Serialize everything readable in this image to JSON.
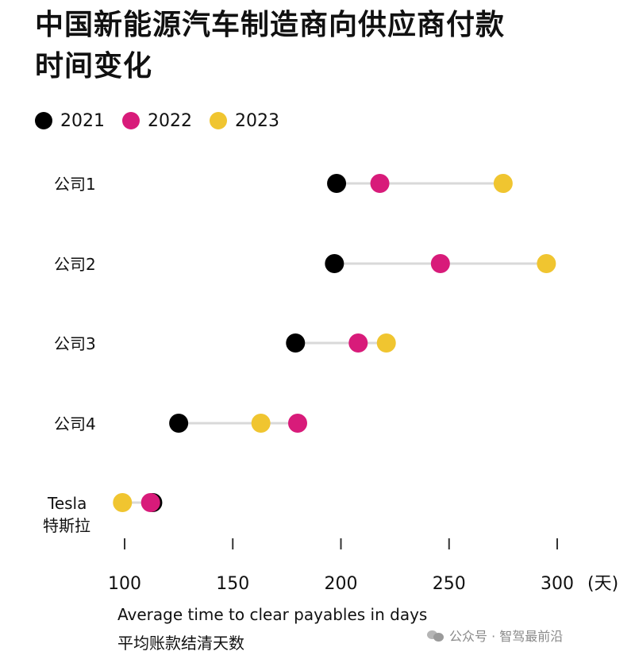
{
  "title_line1": "中国新能源汽车制造商向供应商付款",
  "title_line2": "时间变化",
  "xlabel_en": "Average time to clear payables in days",
  "xlabel_zh": "平均账款结清天数",
  "watermark": "公众号 · 智驾最前沿",
  "colors": {
    "2021": "#000000",
    "2022": "#d81b7a",
    "2023": "#f0c530",
    "connector": "#d9d9d9"
  },
  "chart_data": {
    "type": "dot-plot",
    "xlim": [
      95,
      320
    ],
    "xticks": [
      100,
      150,
      200,
      250,
      300
    ],
    "x_unit_label": "(天)",
    "legend": [
      "2021",
      "2022",
      "2023"
    ],
    "categories": [
      {
        "label": "公司1",
        "label2": "",
        "values": {
          "2021": 198,
          "2022": 218,
          "2023": 275
        }
      },
      {
        "label": "公司2",
        "label2": "",
        "values": {
          "2021": 197,
          "2022": 246,
          "2023": 295
        }
      },
      {
        "label": "公司3",
        "label2": "",
        "values": {
          "2021": 179,
          "2022": 208,
          "2023": 221
        }
      },
      {
        "label": "公司4",
        "label2": "",
        "values": {
          "2021": 125,
          "2022": 180,
          "2023": 163
        }
      },
      {
        "label": "Tesla",
        "label2": "特斯拉",
        "values": {
          "2021": 113,
          "2022": 112,
          "2023": 99
        }
      }
    ]
  }
}
